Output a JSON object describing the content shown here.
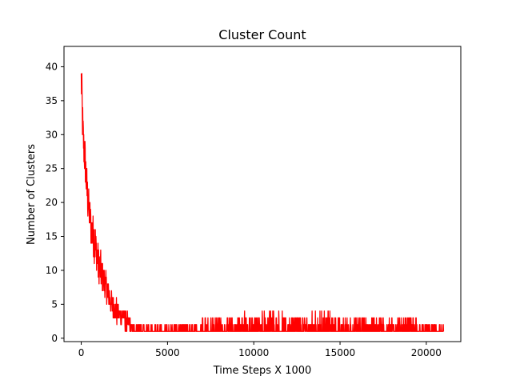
{
  "chart_data": {
    "type": "line",
    "title": "Cluster Count",
    "xlabel": "Time Steps X 1000",
    "ylabel": "Number of Clusters",
    "xlim": [
      -1000,
      22000
    ],
    "ylim": [
      -0.5,
      43
    ],
    "xticks": [
      0,
      5000,
      10000,
      15000,
      20000
    ],
    "yticks": [
      0,
      5,
      10,
      15,
      20,
      25,
      30,
      35,
      40
    ],
    "grid": false,
    "legend": "none",
    "series": [
      {
        "color": "#ff0000",
        "x_range": [
          0,
          21000
        ],
        "envelope_x": [
          0,
          50,
          100,
          200,
          300,
          400,
          500,
          600,
          700,
          800,
          900,
          1000,
          1200,
          1400,
          1600,
          1800,
          2000,
          2200,
          2400,
          2600,
          2800,
          3000,
          3500,
          4000,
          4500,
          5000,
          5500,
          6000,
          6500,
          7000,
          7500,
          8000,
          8500,
          9000,
          9500,
          10000,
          10500,
          11000,
          11500,
          12000,
          12500,
          13000,
          13500,
          14000,
          14500,
          15000,
          15500,
          16000,
          16500,
          17000,
          17500,
          18000,
          18500,
          19000,
          19500,
          20000,
          20500,
          21000
        ],
        "envelope_max": [
          41,
          38,
          33,
          30,
          26,
          23,
          21,
          19,
          18,
          17,
          15,
          14,
          12,
          10,
          8,
          7,
          6,
          5,
          5,
          4,
          3,
          2,
          2,
          2,
          2,
          2,
          2,
          2,
          2,
          3,
          3,
          3,
          3,
          3,
          4,
          3,
          4,
          4,
          4,
          3,
          4,
          3,
          4,
          4,
          4,
          3,
          3,
          3,
          3,
          3,
          3,
          3,
          3,
          3,
          3,
          2,
          2,
          2
        ],
        "envelope_min": [
          35,
          30,
          26,
          24,
          20,
          17,
          15,
          13,
          12,
          11,
          10,
          8,
          7,
          6,
          4,
          3,
          2,
          2,
          2,
          1,
          1,
          1,
          1,
          1,
          1,
          1,
          1,
          1,
          1,
          1,
          1,
          1,
          1,
          1,
          1,
          1,
          1,
          1,
          1,
          1,
          1,
          1,
          1,
          1,
          1,
          1,
          1,
          1,
          1,
          1,
          1,
          1,
          1,
          1,
          1,
          1,
          1,
          1
        ]
      }
    ]
  }
}
